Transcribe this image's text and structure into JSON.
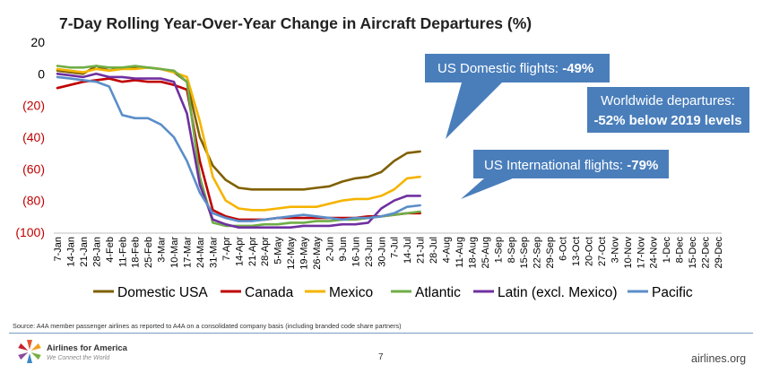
{
  "page_number": "7",
  "footer": {
    "source": "Source: A4A member passenger airlines as reported to A4A on a consolidated company basis (including branded code share partners)",
    "logo_name": "Airlines for America",
    "logo_tagline": "We Connect the World",
    "site": "airlines.org"
  },
  "callouts": {
    "domestic_label": "US Domestic flights: ",
    "domestic_value": "-49%",
    "worldwide_line1": "Worldwide departures:",
    "worldwide_line2": "-52% below 2019 levels",
    "international_label": "US International flights: ",
    "international_value": "-79%",
    "box_color": "#4a7ebb"
  },
  "chart_data": {
    "type": "line",
    "title": "7-Day Rolling Year-Over-Year Change in Aircraft Departures (%)",
    "xlabel": "",
    "ylabel": "",
    "ylim": [
      -100,
      20
    ],
    "yticks": [
      20,
      0,
      -20,
      -40,
      -60,
      -80,
      -100
    ],
    "ytick_labels": [
      "20",
      "0",
      "(20)",
      "(40)",
      "(60)",
      "(80)",
      "(100)"
    ],
    "negative_label_color": "#c00000",
    "grid": false,
    "legend_position": "bottom",
    "x_categories": [
      "7-Jan",
      "14-Jan",
      "21-Jan",
      "28-Jan",
      "4-Feb",
      "11-Feb",
      "18-Feb",
      "25-Feb",
      "3-Mar",
      "10-Mar",
      "17-Mar",
      "24-Mar",
      "31-Mar",
      "7-Apr",
      "14-Apr",
      "21-Apr",
      "28-Apr",
      "5-May",
      "12-May",
      "19-May",
      "26-May",
      "2-Jun",
      "9-Jun",
      "16-Jun",
      "23-Jun",
      "30-Jun",
      "7-Jul",
      "14-Jul",
      "21-Jul",
      "28-Jul",
      "4-Aug",
      "11-Aug",
      "18-Aug",
      "25-Aug",
      "1-Sep",
      "8-Sep",
      "15-Sep",
      "22-Sep",
      "29-Sep",
      "6-Oct",
      "13-Oct",
      "20-Oct",
      "27-Oct",
      "3-Nov",
      "10-Nov",
      "17-Nov",
      "24-Nov",
      "1-Dec",
      "8-Dec",
      "15-Dec",
      "22-Dec",
      "29-Dec"
    ],
    "series": [
      {
        "name": "Domestic USA",
        "color": "#7f6000",
        "values": [
          2,
          1,
          0,
          5,
          2,
          4,
          4,
          4,
          3,
          1,
          -5,
          -40,
          -58,
          -67,
          -72,
          -73,
          -73,
          -73,
          -73,
          -73,
          -72,
          -71,
          -68,
          -66,
          -65,
          -62,
          -55,
          -50,
          -49
        ]
      },
      {
        "name": "Canada",
        "color": "#c00000",
        "values": [
          -9,
          -7,
          -5,
          -4,
          -3,
          -5,
          -4,
          -5,
          -5,
          -7,
          -10,
          -55,
          -86,
          -90,
          -92,
          -92,
          -92,
          -91,
          -91,
          -91,
          -91,
          -91,
          -91,
          -91,
          -90,
          -90,
          -89,
          -88,
          -88
        ]
      },
      {
        "name": "Mexico",
        "color": "#f5b400",
        "values": [
          3,
          2,
          1,
          3,
          2,
          3,
          3,
          4,
          3,
          1,
          -2,
          -30,
          -65,
          -80,
          -85,
          -86,
          -86,
          -85,
          -84,
          -84,
          -84,
          -82,
          -80,
          -79,
          -79,
          -77,
          -73,
          -66,
          -65
        ]
      },
      {
        "name": "Atlantic",
        "color": "#70ad47",
        "values": [
          5,
          4,
          4,
          5,
          4,
          4,
          5,
          4,
          3,
          2,
          -5,
          -65,
          -94,
          -96,
          -96,
          -96,
          -95,
          -95,
          -94,
          -94,
          -93,
          -93,
          -92,
          -92,
          -91,
          -90,
          -89,
          -88,
          -87
        ]
      },
      {
        "name": "Latin (excl. Mexico)",
        "color": "#7030a0",
        "values": [
          0,
          -1,
          -2,
          0,
          -2,
          -2,
          -3,
          -3,
          -3,
          -5,
          -25,
          -70,
          -92,
          -95,
          -97,
          -97,
          -97,
          -97,
          -97,
          -96,
          -96,
          -96,
          -95,
          -95,
          -94,
          -85,
          -80,
          -77,
          -77
        ]
      },
      {
        "name": "Pacific",
        "color": "#5b8ec9",
        "values": [
          -2,
          -3,
          -4,
          -5,
          -8,
          -26,
          -28,
          -28,
          -32,
          -40,
          -55,
          -75,
          -88,
          -91,
          -93,
          -93,
          -92,
          -91,
          -90,
          -89,
          -90,
          -91,
          -92,
          -91,
          -91,
          -90,
          -88,
          -84,
          -83
        ]
      }
    ]
  }
}
